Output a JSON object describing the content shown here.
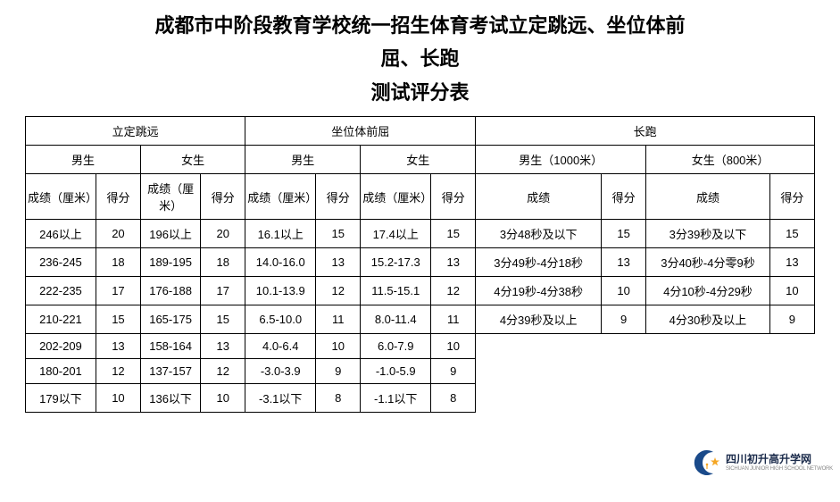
{
  "title": {
    "line1": "成都市中阶段教育学校统一招生体育考试立定跳远、坐位体前",
    "line2": "屈、长跑",
    "line3": "测试评分表"
  },
  "headers": {
    "event1": "立定跳远",
    "event2": "坐位体前屈",
    "event3": "长跑",
    "male": "男生",
    "female": "女生",
    "male1000": "男生（1000米）",
    "female800": "女生（800米）",
    "score_cm": "成绩（厘米）",
    "points": "得分",
    "score": "成绩"
  },
  "rows": [
    {
      "a1": "246以上",
      "a2": "20",
      "a3": "196以上",
      "a4": "20",
      "b1": "16.1以上",
      "b2": "15",
      "b3": "17.4以上",
      "b4": "15",
      "c1": "3分48秒及以下",
      "c2": "15",
      "c3": "3分39秒及以下",
      "c4": "15"
    },
    {
      "a1": "236-245",
      "a2": "18",
      "a3": "189-195",
      "a4": "18",
      "b1": "14.0-16.0",
      "b2": "13",
      "b3": "15.2-17.3",
      "b4": "13",
      "c1": "3分49秒-4分18秒",
      "c2": "13",
      "c3": "3分40秒-4分零9秒",
      "c4": "13"
    },
    {
      "a1": "222-235",
      "a2": "17",
      "a3": "176-188",
      "a4": "17",
      "b1": "10.1-13.9",
      "b2": "12",
      "b3": "11.5-15.1",
      "b4": "12",
      "c1": "4分19秒-4分38秒",
      "c2": "10",
      "c3": "4分10秒-4分29秒",
      "c4": "10"
    },
    {
      "a1": "210-221",
      "a2": "15",
      "a3": "165-175",
      "a4": "15",
      "b1": "6.5-10.0",
      "b2": "11",
      "b3": "8.0-11.4",
      "b4": "11",
      "c1": "4分39秒及以上",
      "c2": "9",
      "c3": "4分30秒及以上",
      "c4": "9"
    },
    {
      "a1": "202-209",
      "a2": "13",
      "a3": "158-164",
      "a4": "13",
      "b1": "4.0-6.4",
      "b2": "10",
      "b3": "6.0-7.9",
      "b4": "10",
      "c1": "",
      "c2": "",
      "c3": "",
      "c4": ""
    },
    {
      "a1": "180-201",
      "a2": "12",
      "a3": "137-157",
      "a4": "12",
      "b1": "-3.0-3.9",
      "b2": "9",
      "b3": "-1.0-5.9",
      "b4": "9",
      "c1": "",
      "c2": "",
      "c3": "",
      "c4": ""
    },
    {
      "a1": "179以下",
      "a2": "10",
      "a3": "136以下",
      "a4": "10",
      "b1": "-3.1以下",
      "b2": "8",
      "b3": "-1.1以下",
      "b4": "8",
      "c1": "",
      "c2": "",
      "c3": "",
      "c4": ""
    }
  ],
  "logo": {
    "cn": "四川初升高升学网",
    "en": "SICHUAN JUNIOR HIGH SCHOOL NETWORK",
    "colors": {
      "crescent": "#1a4a8a",
      "star": "#f5a623",
      "accent": "#1a4a8a"
    }
  },
  "style": {
    "background": "#ffffff",
    "border_color": "#000000",
    "title_fontsize": 22,
    "cell_fontsize": 13
  }
}
